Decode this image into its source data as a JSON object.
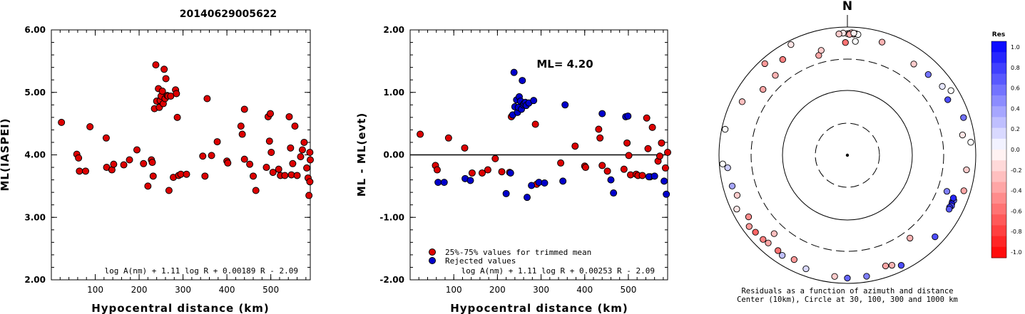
{
  "figure_title": "20140629005622",
  "chart_data": [
    {
      "type": "scatter",
      "title": "",
      "xlabel": "Hypocentral distance (km)",
      "ylabel": "ML(IASPEI)",
      "xlim": [
        0,
        590
      ],
      "ylim": [
        2.0,
        6.0
      ],
      "x_ticks": [
        "100",
        "200",
        "300",
        "400",
        "500"
      ],
      "y_ticks": [
        "2.00",
        "3.00",
        "4.00",
        "5.00",
        "6.00"
      ],
      "formula": "log A(nm) + 1.11 log R + 0.00189 R - 2.09",
      "series": [
        {
          "color": "#dd0000",
          "points": [
            [
              23,
              4.52
            ],
            [
              58,
              4.01
            ],
            [
              62,
              3.95
            ],
            [
              64,
              3.74
            ],
            [
              78,
              3.74
            ],
            [
              88,
              4.45
            ],
            [
              125,
              4.27
            ],
            [
              126,
              3.8
            ],
            [
              138,
              3.76
            ],
            [
              142,
              3.85
            ],
            [
              165,
              3.84
            ],
            [
              178,
              3.92
            ],
            [
              195,
              4.08
            ],
            [
              210,
              3.86
            ],
            [
              220,
              3.5
            ],
            [
              228,
              3.92
            ],
            [
              230,
              3.88
            ],
            [
              232,
              3.66
            ],
            [
              235,
              4.74
            ],
            [
              238,
              5.44
            ],
            [
              240,
              4.86
            ],
            [
              244,
              5.06
            ],
            [
              246,
              4.76
            ],
            [
              248,
              4.87
            ],
            [
              250,
              4.94
            ],
            [
              253,
              5.02
            ],
            [
              255,
              4.82
            ],
            [
              257,
              5.37
            ],
            [
              259,
              4.9
            ],
            [
              261,
              5.22
            ],
            [
              264,
              4.95
            ],
            [
              266,
              4.94
            ],
            [
              268,
              3.43
            ],
            [
              272,
              4.94
            ],
            [
              278,
              3.64
            ],
            [
              283,
              5.04
            ],
            [
              285,
              4.98
            ],
            [
              287,
              4.6
            ],
            [
              290,
              3.67
            ],
            [
              295,
              3.69
            ],
            [
              308,
              3.69
            ],
            [
              345,
              3.98
            ],
            [
              350,
              3.66
            ],
            [
              355,
              4.9
            ],
            [
              365,
              3.99
            ],
            [
              378,
              4.21
            ],
            [
              400,
              3.9
            ],
            [
              402,
              3.87
            ],
            [
              432,
              4.46
            ],
            [
              435,
              4.33
            ],
            [
              440,
              4.73
            ],
            [
              440,
              3.93
            ],
            [
              452,
              3.85
            ],
            [
              460,
              3.66
            ],
            [
              466,
              3.43
            ],
            [
              490,
              3.8
            ],
            [
              494,
              4.61
            ],
            [
              497,
              4.22
            ],
            [
              499,
              4.66
            ],
            [
              501,
              4.04
            ],
            [
              505,
              3.72
            ],
            [
              518,
              3.77
            ],
            [
              522,
              3.67
            ],
            [
              532,
              3.67
            ],
            [
              542,
              4.61
            ],
            [
              545,
              4.11
            ],
            [
              547,
              3.68
            ],
            [
              550,
              3.86
            ],
            [
              555,
              4.46
            ],
            [
              560,
              3.67
            ],
            [
              568,
              3.97
            ],
            [
              572,
              4.08
            ],
            [
              576,
              4.2
            ],
            [
              582,
              3.79
            ],
            [
              585,
              3.63
            ],
            [
              587,
              3.35
            ],
            [
              589,
              3.57
            ],
            [
              590,
              3.92
            ],
            [
              589,
              4.04
            ]
          ]
        }
      ]
    },
    {
      "type": "scatter",
      "title": "",
      "xlabel": "Hypocentral distance (km)",
      "ylabel": "ML - ML(evt)",
      "xlim": [
        0,
        590
      ],
      "ylim": [
        -2.0,
        2.0
      ],
      "x_ticks": [
        "100",
        "200",
        "300",
        "400",
        "500"
      ],
      "y_ticks": [
        "-2.00",
        "-1.00",
        "0.00",
        "1.00",
        "2.00"
      ],
      "annotation": "ML= 4.20",
      "formula": "log A(nm) + 1.11 log R + 0.00253 R - 2.09",
      "legend": [
        "25%-75% values for trimmed mean",
        "Rejected values"
      ],
      "legend_position": "bottom-left",
      "series": [
        {
          "name": "25%-75% values for trimmed mean",
          "color": "#dd0000",
          "points": [
            [
              23,
              0.33
            ],
            [
              58,
              -0.17
            ],
            [
              62,
              -0.24
            ],
            [
              88,
              0.27
            ],
            [
              125,
              0.11
            ],
            [
              142,
              -0.29
            ],
            [
              165,
              -0.29
            ],
            [
              178,
              -0.24
            ],
            [
              195,
              -0.06
            ],
            [
              210,
              -0.27
            ],
            [
              228,
              -0.28
            ],
            [
              232,
              0.61
            ],
            [
              287,
              0.49
            ],
            [
              290,
              -0.47
            ],
            [
              345,
              -0.13
            ],
            [
              378,
              0.14
            ],
            [
              400,
              -0.18
            ],
            [
              402,
              -0.2
            ],
            [
              432,
              0.41
            ],
            [
              435,
              0.27
            ],
            [
              440,
              -0.17
            ],
            [
              452,
              -0.26
            ],
            [
              490,
              -0.23
            ],
            [
              497,
              0.19
            ],
            [
              501,
              -0.01
            ],
            [
              505,
              -0.32
            ],
            [
              518,
              -0.31
            ],
            [
              522,
              -0.33
            ],
            [
              532,
              -0.33
            ],
            [
              542,
              0.59
            ],
            [
              545,
              0.1
            ],
            [
              550,
              -0.35
            ],
            [
              555,
              0.44
            ],
            [
              568,
              -0.1
            ],
            [
              572,
              -0.02
            ],
            [
              576,
              0.19
            ],
            [
              585,
              -0.21
            ],
            [
              590,
              0.04
            ]
          ]
        },
        {
          "name": "Rejected values",
          "color": "#0000cc",
          "points": [
            [
              64,
              -0.44
            ],
            [
              78,
              -0.44
            ],
            [
              126,
              -0.38
            ],
            [
              138,
              -0.41
            ],
            [
              220,
              -0.62
            ],
            [
              230,
              -0.29
            ],
            [
              235,
              0.64
            ],
            [
              238,
              1.32
            ],
            [
              240,
              0.77
            ],
            [
              244,
              0.88
            ],
            [
              246,
              0.68
            ],
            [
              248,
              0.76
            ],
            [
              250,
              0.93
            ],
            [
              253,
              0.86
            ],
            [
              255,
              0.73
            ],
            [
              257,
              1.19
            ],
            [
              259,
              0.8
            ],
            [
              261,
              0.82
            ],
            [
              264,
              0.84
            ],
            [
              266,
              0.79
            ],
            [
              268,
              -0.68
            ],
            [
              272,
              0.83
            ],
            [
              278,
              -0.49
            ],
            [
              283,
              0.87
            ],
            [
              295,
              -0.44
            ],
            [
              308,
              -0.45
            ],
            [
              350,
              -0.42
            ],
            [
              355,
              0.8
            ],
            [
              440,
              0.66
            ],
            [
              460,
              -0.4
            ],
            [
              466,
              -0.61
            ],
            [
              494,
              0.61
            ],
            [
              499,
              0.62
            ],
            [
              547,
              -0.35
            ],
            [
              560,
              -0.34
            ],
            [
              582,
              -0.42
            ],
            [
              587,
              -0.63
            ]
          ]
        }
      ]
    },
    {
      "type": "scatter",
      "subtype": "polar",
      "title": "",
      "north_label": "N",
      "caption_line1": "Residuals as a function of azimuth and distance",
      "caption_line2": "Center (10km), Circle at 30, 100, 300 and 1000 km",
      "circles_km": [
        30,
        100,
        300,
        1000
      ],
      "colorbar_title": "Res",
      "colorbar_ticks": [
        "1.0",
        "0.8",
        "0.6",
        "0.4",
        "0.2",
        "0.0",
        "-0.2",
        "-0.4",
        "-0.6",
        "-0.8",
        "-1.0"
      ],
      "colorbar_range": [
        -1.0,
        1.0
      ],
      "stations": [
        {
          "az": 0,
          "dist": 780,
          "res": -0.15
        },
        {
          "az": 1,
          "dist": 790,
          "res": -0.2
        },
        {
          "az": 3,
          "dist": 770,
          "res": -0.3
        },
        {
          "az": 358,
          "dist": 800,
          "res": -0.1
        },
        {
          "az": 2,
          "dist": 810,
          "res": -0.25
        },
        {
          "az": 4,
          "dist": 790,
          "res": -0.1
        },
        {
          "az": 356,
          "dist": 780,
          "res": -0.2
        },
        {
          "az": 5,
          "dist": 770,
          "res": 0.0
        },
        {
          "az": 1,
          "dist": 760,
          "res": -0.35
        },
        {
          "az": 3,
          "dist": 800,
          "res": -0.05
        },
        {
          "az": 333,
          "dist": 860,
          "res": -0.1
        },
        {
          "az": 318,
          "dist": 830,
          "res": -0.4
        },
        {
          "az": 326,
          "dist": 620,
          "res": -0.5
        },
        {
          "az": 318,
          "dist": 460,
          "res": -0.3
        },
        {
          "az": 344,
          "dist": 400,
          "res": -0.35
        },
        {
          "az": 346,
          "dist": 470,
          "res": -0.2
        },
        {
          "az": 359,
          "dist": 560,
          "res": -0.55
        },
        {
          "az": 4,
          "dist": 590,
          "res": 0.0
        },
        {
          "az": 17,
          "dist": 690,
          "res": -0.3
        },
        {
          "az": 36,
          "dist": 560,
          "res": -0.2
        },
        {
          "az": 45,
          "dist": 590,
          "res": 0.55
        },
        {
          "az": 54,
          "dist": 660,
          "res": 0.1
        },
        {
          "az": 58,
          "dist": 790,
          "res": 0.0
        },
        {
          "az": 72,
          "dist": 790,
          "res": 0.55
        },
        {
          "az": 61,
          "dist": 600,
          "res": 0.7
        },
        {
          "az": 297,
          "dist": 680,
          "res": -0.25
        },
        {
          "az": 308,
          "dist": 450,
          "res": -0.35
        },
        {
          "az": 282,
          "dist": 880,
          "res": 0.0
        },
        {
          "az": 266,
          "dist": 880,
          "res": 0.0
        },
        {
          "az": 264,
          "dist": 740,
          "res": 0.2
        },
        {
          "az": 110,
          "dist": 430,
          "res": 0.5
        },
        {
          "az": 80,
          "dist": 650,
          "res": -0.1
        },
        {
          "az": 84,
          "dist": 850,
          "res": 0.0
        },
        {
          "az": 97,
          "dist": 730,
          "res": -0.2
        },
        {
          "az": 107,
          "dist": 780,
          "res": -0.35
        },
        {
          "az": 114,
          "dist": 600,
          "res": 0.75
        },
        {
          "az": 113,
          "dist": 620,
          "res": 0.6
        },
        {
          "az": 115,
          "dist": 610,
          "res": 0.9
        },
        {
          "az": 116,
          "dist": 625,
          "res": 0.7
        },
        {
          "az": 117,
          "dist": 600,
          "res": 0.8
        },
        {
          "az": 112,
          "dist": 590,
          "res": 0.85
        },
        {
          "az": 118,
          "dist": 610,
          "res": 0.65
        },
        {
          "az": 133,
          "dist": 725,
          "res": 0.7
        },
        {
          "az": 143,
          "dist": 400,
          "res": -0.3
        },
        {
          "az": 223,
          "dist": 455,
          "res": -0.25
        },
        {
          "az": 234,
          "dist": 770,
          "res": -0.4
        },
        {
          "az": 238,
          "dist": 640,
          "res": -0.45
        },
        {
          "az": 255,
          "dist": 710,
          "res": 0.35
        },
        {
          "az": 250,
          "dist": 660,
          "res": -0.2
        },
        {
          "az": 244,
          "dist": 820,
          "res": -0.1
        },
        {
          "az": 216,
          "dist": 680,
          "res": -0.55
        },
        {
          "az": 213,
          "dist": 720,
          "res": 0.25
        },
        {
          "az": 207,
          "dist": 660,
          "res": -0.4
        },
        {
          "az": 222,
          "dist": 685,
          "res": -0.35
        },
        {
          "az": 200,
          "dist": 760,
          "res": 0.15
        },
        {
          "az": 186,
          "dist": 790,
          "res": -0.2
        },
        {
          "az": 171,
          "dist": 810,
          "res": 0.5
        },
        {
          "az": 180,
          "dist": 820,
          "res": 0.6
        },
        {
          "az": 161,
          "dist": 660,
          "res": -0.35
        },
        {
          "az": 158,
          "dist": 700,
          "res": -0.3
        },
        {
          "az": 154,
          "dist": 810,
          "res": 0.7
        },
        {
          "az": 230,
          "dist": 730,
          "res": -0.6
        },
        {
          "az": 225,
          "dist": 710,
          "res": -0.5
        }
      ]
    }
  ]
}
